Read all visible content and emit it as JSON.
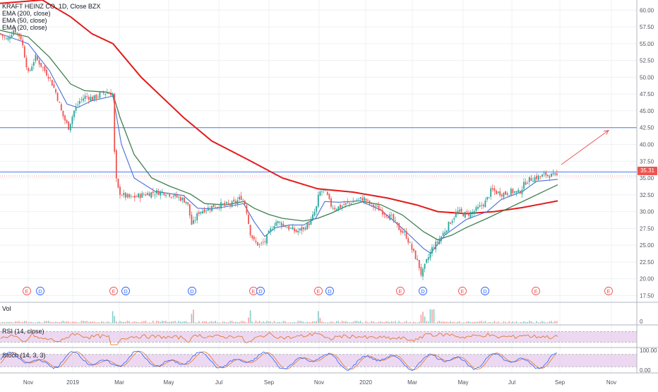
{
  "chart_data": {
    "type": "candlestick",
    "title": "KRAFT HEINZ CO, 1D, Close BZX",
    "indicators": [
      "EMA (200, close)",
      "EMA (50, close)",
      "EMA (20, close)"
    ],
    "last_price_label": "35.31",
    "y_ticks": [
      "60.00",
      "57.50",
      "55.00",
      "52.50",
      "50.00",
      "47.50",
      "45.00",
      "42.50",
      "40.00",
      "37.50",
      "35.00",
      "32.50",
      "30.00",
      "27.50",
      "25.00",
      "22.50",
      "20.00",
      "17.50"
    ],
    "ylim": [
      16.5,
      61.5
    ],
    "x_ticks": [
      {
        "label": "Nov",
        "pos": 40
      },
      {
        "label": "2019",
        "pos": 103
      },
      {
        "label": "Mar",
        "pos": 169
      },
      {
        "label": "May",
        "pos": 239
      },
      {
        "label": "Jul",
        "pos": 310
      },
      {
        "label": "Sep",
        "pos": 381
      },
      {
        "label": "Nov",
        "pos": 452
      },
      {
        "label": "2020",
        "pos": 518
      },
      {
        "label": "Mar",
        "pos": 584
      },
      {
        "label": "May",
        "pos": 656
      },
      {
        "label": "Jul",
        "pos": 725
      },
      {
        "label": "Sep",
        "pos": 793
      },
      {
        "label": "Nov",
        "pos": 866
      }
    ],
    "horizontal_lines": [
      42.5,
      35.9
    ],
    "close_path": [
      [
        0,
        56.5
      ],
      [
        10,
        55.5
      ],
      [
        20,
        57.2
      ],
      [
        30,
        55.8
      ],
      [
        40,
        50.5
      ],
      [
        50,
        53.0
      ],
      [
        60,
        51.5
      ],
      [
        70,
        50.0
      ],
      [
        80,
        47.5
      ],
      [
        88,
        44.5
      ],
      [
        97,
        42.5
      ],
      [
        105,
        45.0
      ],
      [
        113,
        46.5
      ],
      [
        122,
        47.2
      ],
      [
        132,
        46.8
      ],
      [
        142,
        47.5
      ],
      [
        152,
        47.8
      ],
      [
        160,
        47.5
      ],
      [
        163,
        35.5
      ],
      [
        168,
        33.0
      ],
      [
        175,
        32.4
      ],
      [
        185,
        32.0
      ],
      [
        195,
        32.3
      ],
      [
        205,
        32.6
      ],
      [
        215,
        32.8
      ],
      [
        225,
        32.9
      ],
      [
        235,
        32.9
      ],
      [
        245,
        32.4
      ],
      [
        255,
        32.0
      ],
      [
        265,
        31.5
      ],
      [
        272,
        27.8
      ],
      [
        276,
        28.8
      ],
      [
        282,
        30.0
      ],
      [
        292,
        30.4
      ],
      [
        302,
        30.8
      ],
      [
        312,
        31.0
      ],
      [
        322,
        31.0
      ],
      [
        332,
        31.2
      ],
      [
        342,
        32.2
      ],
      [
        348,
        31.0
      ],
      [
        354,
        27.0
      ],
      [
        360,
        25.5
      ],
      [
        368,
        25.0
      ],
      [
        375,
        25.5
      ],
      [
        382,
        27.0
      ],
      [
        390,
        28.5
      ],
      [
        400,
        28.2
      ],
      [
        410,
        27.5
      ],
      [
        420,
        27.0
      ],
      [
        430,
        27.5
      ],
      [
        440,
        28.5
      ],
      [
        448,
        30.5
      ],
      [
        452,
        32.8
      ],
      [
        458,
        33.1
      ],
      [
        463,
        32.5
      ],
      [
        468,
        31.0
      ],
      [
        475,
        30.5
      ],
      [
        485,
        30.9
      ],
      [
        495,
        31.3
      ],
      [
        505,
        31.7
      ],
      [
        515,
        32.0
      ],
      [
        525,
        31.0
      ],
      [
        535,
        30.5
      ],
      [
        545,
        29.8
      ],
      [
        555,
        29.0
      ],
      [
        565,
        27.5
      ],
      [
        575,
        26.5
      ],
      [
        585,
        24.0
      ],
      [
        592,
        22.5
      ],
      [
        597,
        20.5
      ],
      [
        604,
        22.5
      ],
      [
        612,
        24.5
      ],
      [
        620,
        25.5
      ],
      [
        628,
        26.8
      ],
      [
        638,
        28.5
      ],
      [
        648,
        30.0
      ],
      [
        658,
        29.6
      ],
      [
        668,
        29.8
      ],
      [
        678,
        30.5
      ],
      [
        688,
        31.5
      ],
      [
        696,
        33.2
      ],
      [
        705,
        32.8
      ],
      [
        715,
        32.7
      ],
      [
        725,
        33.0
      ],
      [
        735,
        32.8
      ],
      [
        745,
        34.5
      ],
      [
        755,
        35.0
      ],
      [
        765,
        35.2
      ],
      [
        775,
        35.6
      ],
      [
        782,
        35.3
      ],
      [
        790,
        35.3
      ]
    ],
    "ema200_path": [
      [
        0,
        61.0
      ],
      [
        60,
        61.5
      ],
      [
        100,
        59.0
      ],
      [
        130,
        56.5
      ],
      [
        160,
        55.0
      ],
      [
        200,
        50.0
      ],
      [
        260,
        44.0
      ],
      [
        300,
        40.5
      ],
      [
        350,
        37.8
      ],
      [
        400,
        35.0
      ],
      [
        450,
        33.4
      ],
      [
        500,
        32.9
      ],
      [
        550,
        32.0
      ],
      [
        590,
        31.0
      ],
      [
        620,
        30.0
      ],
      [
        660,
        29.7
      ],
      [
        700,
        30.0
      ],
      [
        740,
        30.6
      ],
      [
        790,
        31.6
      ]
    ],
    "ema50_path": [
      [
        0,
        57.0
      ],
      [
        40,
        56.0
      ],
      [
        70,
        53.0
      ],
      [
        100,
        49.0
      ],
      [
        120,
        48.0
      ],
      [
        150,
        47.8
      ],
      [
        160,
        47.5
      ],
      [
        170,
        44.0
      ],
      [
        190,
        38.5
      ],
      [
        215,
        35.0
      ],
      [
        240,
        33.8
      ],
      [
        270,
        32.6
      ],
      [
        290,
        31.2
      ],
      [
        320,
        31.0
      ],
      [
        345,
        31.5
      ],
      [
        360,
        30.5
      ],
      [
        380,
        29.6
      ],
      [
        400,
        29.0
      ],
      [
        430,
        28.6
      ],
      [
        450,
        29.0
      ],
      [
        470,
        29.8
      ],
      [
        490,
        30.8
      ],
      [
        515,
        31.5
      ],
      [
        540,
        31.0
      ],
      [
        570,
        29.5
      ],
      [
        600,
        27.0
      ],
      [
        620,
        25.8
      ],
      [
        640,
        26.5
      ],
      [
        660,
        27.6
      ],
      [
        690,
        29.0
      ],
      [
        720,
        30.5
      ],
      [
        750,
        32.0
      ],
      [
        770,
        33.0
      ],
      [
        790,
        34.0
      ]
    ],
    "ema20_path": [
      [
        0,
        56.5
      ],
      [
        40,
        55.0
      ],
      [
        70,
        51.0
      ],
      [
        95,
        46.0
      ],
      [
        110,
        45.5
      ],
      [
        130,
        46.5
      ],
      [
        160,
        47.2
      ],
      [
        172,
        40.0
      ],
      [
        190,
        35.0
      ],
      [
        220,
        33.0
      ],
      [
        260,
        32.4
      ],
      [
        280,
        30.5
      ],
      [
        300,
        30.4
      ],
      [
        330,
        30.9
      ],
      [
        345,
        31.2
      ],
      [
        360,
        28.5
      ],
      [
        375,
        26.3
      ],
      [
        390,
        27.6
      ],
      [
        410,
        28.0
      ],
      [
        430,
        28.0
      ],
      [
        447,
        29.0
      ],
      [
        460,
        31.5
      ],
      [
        480,
        31.4
      ],
      [
        510,
        31.6
      ],
      [
        540,
        30.2
      ],
      [
        570,
        27.5
      ],
      [
        600,
        24.5
      ],
      [
        610,
        23.8
      ],
      [
        630,
        26.5
      ],
      [
        660,
        28.8
      ],
      [
        690,
        30.0
      ],
      [
        710,
        31.8
      ],
      [
        740,
        33.0
      ],
      [
        760,
        34.5
      ],
      [
        790,
        34.8
      ]
    ],
    "event_markers": [
      {
        "type": "E",
        "pos": 38
      },
      {
        "type": "D",
        "pos": 57
      },
      {
        "type": "E",
        "pos": 161
      },
      {
        "type": "D",
        "pos": 178
      },
      {
        "type": "D",
        "pos": 272
      },
      {
        "type": "E",
        "pos": 359
      },
      {
        "type": "D",
        "pos": 369
      },
      {
        "type": "E",
        "pos": 451
      },
      {
        "type": "D",
        "pos": 467
      },
      {
        "type": "E",
        "pos": 567
      },
      {
        "type": "D",
        "pos": 599
      },
      {
        "type": "E",
        "pos": 655
      },
      {
        "type": "D",
        "pos": 687
      },
      {
        "type": "E",
        "pos": 759
      },
      {
        "type": "E",
        "pos": 862
      }
    ],
    "arrow": {
      "from": [
        795,
        37.0
      ],
      "to": [
        862,
        42.1
      ]
    },
    "volume": {
      "label": "Vol",
      "y_tick": "0"
    },
    "rsi": {
      "label": "RSI (14, close)",
      "upper": 70,
      "lower": 30
    },
    "stoch": {
      "label": "Stoch (14, 3, 3)",
      "y_ticks": [
        "100.00",
        "0.00"
      ],
      "upper": 80,
      "lower": 20
    }
  }
}
